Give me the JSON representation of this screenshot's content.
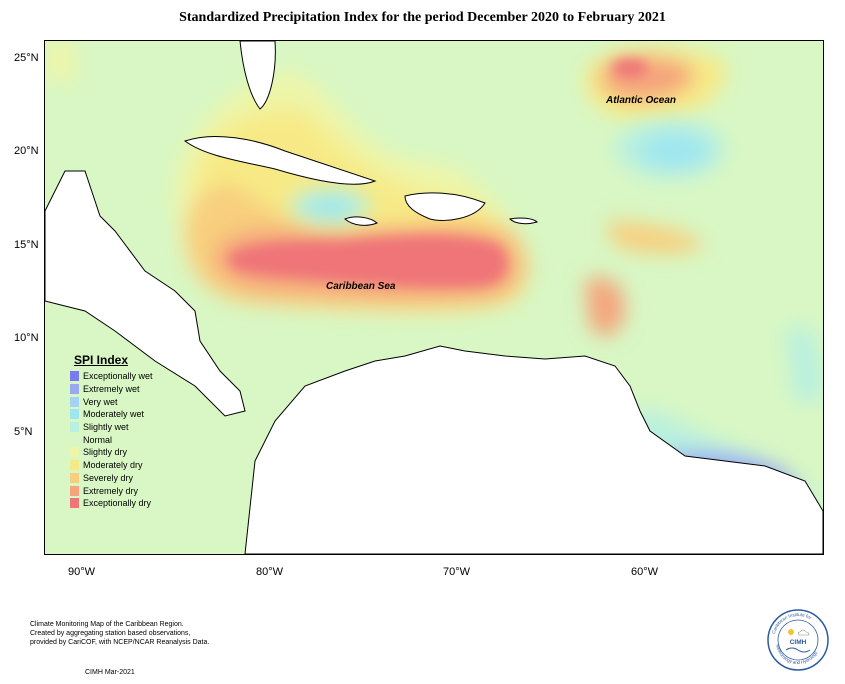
{
  "title": "Standardized Precipitation Index for the period December 2020 to February 2021",
  "lat_labels": [
    "25°N",
    "20°N",
    "15°N",
    "10°N",
    "5°N"
  ],
  "lon_labels": [
    "90°W",
    "80°W",
    "70°W",
    "60°W"
  ],
  "region_labels": {
    "atlantic": "Atlantic Ocean",
    "caribbean": "Caribbean Sea"
  },
  "legend": {
    "title": "SPI Index",
    "items": [
      {
        "label": "Exceptionally wet",
        "color": "#7b7bf0"
      },
      {
        "label": "Extremely wet",
        "color": "#9aa8f2"
      },
      {
        "label": "Very wet",
        "color": "#a3d2f5"
      },
      {
        "label": "Moderately wet",
        "color": "#9ee6f0"
      },
      {
        "label": "Slightly wet",
        "color": "#b9f0df"
      },
      {
        "label": "Normal",
        "color": "#d8f7c4"
      },
      {
        "label": "Slightly dry",
        "color": "#eef5a8"
      },
      {
        "label": "Moderately dry",
        "color": "#f7ea86"
      },
      {
        "label": "Severely dry",
        "color": "#f8cf7e"
      },
      {
        "label": "Extremely dry",
        "color": "#f5a47c"
      },
      {
        "label": "Exceptionally dry",
        "color": "#ef7578"
      }
    ]
  },
  "footer": {
    "line1": "Climate Monitoring Map of the Caribbean Region.",
    "line2": "Created by aggregating station based observations,",
    "line3": "provided by CariCOF, with NCEP/NCAR Reanalysis Data.",
    "date": "CIMH Mar-2021"
  },
  "logo": {
    "text": "CIMH",
    "top_arc": "Caribbean Institute for",
    "bottom_arc": "Meteorology and Hydrology"
  }
}
